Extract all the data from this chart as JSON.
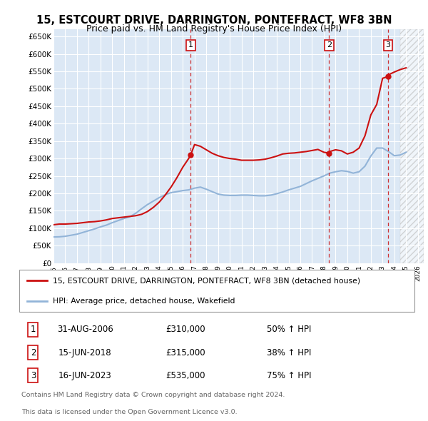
{
  "title": "15, ESTCOURT DRIVE, DARRINGTON, PONTEFRACT, WF8 3BN",
  "subtitle": "Price paid vs. HM Land Registry's House Price Index (HPI)",
  "plot_bg_color": "#dce8f5",
  "grid_color": "#ffffff",
  "hpi_color": "#92b4d8",
  "price_color": "#cc1111",
  "ylim": [
    0,
    670000
  ],
  "yticks": [
    0,
    50000,
    100000,
    150000,
    200000,
    250000,
    300000,
    350000,
    400000,
    450000,
    500000,
    550000,
    600000,
    650000
  ],
  "ytick_labels": [
    "£0",
    "£50K",
    "£100K",
    "£150K",
    "£200K",
    "£250K",
    "£300K",
    "£350K",
    "£400K",
    "£450K",
    "£500K",
    "£550K",
    "£600K",
    "£650K"
  ],
  "xlim_start": 1995.0,
  "xlim_end": 2026.5,
  "xticks": [
    1995,
    1996,
    1997,
    1998,
    1999,
    2000,
    2001,
    2002,
    2003,
    2004,
    2005,
    2006,
    2007,
    2008,
    2009,
    2010,
    2011,
    2012,
    2013,
    2014,
    2015,
    2016,
    2017,
    2018,
    2019,
    2020,
    2021,
    2022,
    2023,
    2024,
    2025,
    2026
  ],
  "sale_dates": [
    2006.67,
    2018.45,
    2023.46
  ],
  "sale_prices": [
    310000,
    315000,
    535000
  ],
  "sale_labels": [
    "1",
    "2",
    "3"
  ],
  "legend_line1": "15, ESTCOURT DRIVE, DARRINGTON, PONTEFRACT, WF8 3BN (detached house)",
  "legend_line2": "HPI: Average price, detached house, Wakefield",
  "table_data": [
    [
      "1",
      "31-AUG-2006",
      "£310,000",
      "50% ↑ HPI"
    ],
    [
      "2",
      "15-JUN-2018",
      "£315,000",
      "38% ↑ HPI"
    ],
    [
      "3",
      "16-JUN-2023",
      "£535,000",
      "75% ↑ HPI"
    ]
  ],
  "footer1": "Contains HM Land Registry data © Crown copyright and database right 2024.",
  "footer2": "This data is licensed under the Open Government Licence v3.0.",
  "hpi_x": [
    1995.0,
    1995.5,
    1996.0,
    1996.5,
    1997.0,
    1997.5,
    1998.0,
    1998.5,
    1999.0,
    1999.5,
    2000.0,
    2000.5,
    2001.0,
    2001.5,
    2002.0,
    2002.5,
    2003.0,
    2003.5,
    2004.0,
    2004.5,
    2005.0,
    2005.5,
    2006.0,
    2006.5,
    2007.0,
    2007.5,
    2008.0,
    2008.5,
    2009.0,
    2009.5,
    2010.0,
    2010.5,
    2011.0,
    2011.5,
    2012.0,
    2012.5,
    2013.0,
    2013.5,
    2014.0,
    2014.5,
    2015.0,
    2015.5,
    2016.0,
    2016.5,
    2017.0,
    2017.5,
    2018.0,
    2018.5,
    2019.0,
    2019.5,
    2020.0,
    2020.5,
    2021.0,
    2021.5,
    2022.0,
    2022.5,
    2023.0,
    2023.5,
    2024.0,
    2024.5,
    2025.0
  ],
  "hpi_y": [
    75000,
    75500,
    77000,
    80000,
    83000,
    88000,
    93000,
    98000,
    104000,
    109000,
    116000,
    122000,
    128000,
    133000,
    143000,
    156000,
    168000,
    178000,
    188000,
    196000,
    202000,
    205000,
    208000,
    210000,
    215000,
    218000,
    212000,
    205000,
    198000,
    195000,
    194000,
    194000,
    195000,
    195000,
    194000,
    193000,
    193000,
    195000,
    199000,
    204000,
    210000,
    215000,
    220000,
    228000,
    236000,
    243000,
    250000,
    258000,
    262000,
    265000,
    263000,
    258000,
    262000,
    278000,
    307000,
    330000,
    330000,
    320000,
    308000,
    310000,
    318000
  ],
  "price_x": [
    1995.0,
    1995.5,
    1996.0,
    1996.5,
    1997.0,
    1997.5,
    1998.0,
    1998.5,
    1999.0,
    1999.5,
    2000.0,
    2000.5,
    2001.0,
    2001.5,
    2002.0,
    2002.5,
    2003.0,
    2003.5,
    2004.0,
    2004.5,
    2005.0,
    2005.5,
    2006.0,
    2006.5,
    2006.67,
    2007.0,
    2007.5,
    2008.0,
    2008.5,
    2009.0,
    2009.5,
    2010.0,
    2010.5,
    2011.0,
    2011.5,
    2012.0,
    2012.5,
    2013.0,
    2013.5,
    2014.0,
    2014.5,
    2015.0,
    2015.5,
    2016.0,
    2016.5,
    2017.0,
    2017.5,
    2018.0,
    2018.45,
    2018.5,
    2019.0,
    2019.5,
    2020.0,
    2020.5,
    2021.0,
    2021.5,
    2022.0,
    2022.5,
    2023.0,
    2023.46,
    2023.5,
    2024.0,
    2024.5,
    2025.0
  ],
  "price_y": [
    110000,
    112000,
    112000,
    113000,
    114000,
    116000,
    118000,
    119000,
    121000,
    124000,
    128000,
    130000,
    132000,
    134000,
    136000,
    140000,
    148000,
    160000,
    175000,
    195000,
    218000,
    245000,
    275000,
    300000,
    310000,
    340000,
    335000,
    325000,
    315000,
    308000,
    303000,
    300000,
    298000,
    295000,
    295000,
    295000,
    296000,
    298000,
    302000,
    307000,
    313000,
    315000,
    316000,
    318000,
    320000,
    323000,
    326000,
    318000,
    315000,
    320000,
    325000,
    322000,
    313000,
    318000,
    330000,
    365000,
    425000,
    455000,
    530000,
    535000,
    540000,
    548000,
    555000,
    560000
  ]
}
